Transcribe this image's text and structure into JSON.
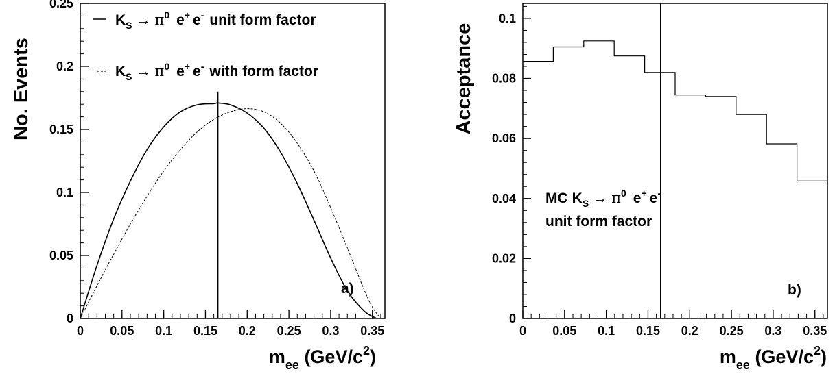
{
  "chart_data": [
    {
      "type": "line",
      "panel_label": "a)",
      "ylabel": "No. Events",
      "xlabel": {
        "main": "m",
        "sub": "ee",
        "unit_pre": " (GeV/c",
        "unit_sup": "2",
        "unit_post": ")"
      },
      "xlim": [
        0,
        0.365
      ],
      "ylim": [
        0,
        0.25
      ],
      "xticks": [
        0,
        0.05,
        0.1,
        0.15,
        0.2,
        0.25,
        0.3,
        0.35
      ],
      "xtick_labels": [
        "0",
        "0.05",
        "0.1",
        "0.15",
        "0.2",
        "0.25",
        "0.3",
        "0.35"
      ],
      "yticks": [
        0,
        0.05,
        0.1,
        0.15,
        0.2,
        0.25
      ],
      "ytick_labels": [
        "0",
        "0.05",
        "0.1",
        "0.15",
        "0.2",
        "0.25"
      ],
      "vline_x": 0.165,
      "vline_top": 0.18,
      "legend": [
        {
          "style": "solid",
          "k": "K",
          "ks": "S",
          "pi": "π",
          "pis": "0",
          "e1": "e",
          "e1s": "+",
          "e2": "e",
          "e2s": "-",
          "text": "unit form factor"
        },
        {
          "style": "dashed",
          "k": "K",
          "ks": "S",
          "pi": "π",
          "pis": "0",
          "e1": "e",
          "e1s": "+",
          "e2": "e",
          "e2s": "-",
          "text": "with form factor"
        }
      ],
      "series": [
        {
          "style": "solid",
          "x": [
            0,
            0.02,
            0.04,
            0.06,
            0.08,
            0.1,
            0.12,
            0.14,
            0.16,
            0.165,
            0.18,
            0.2,
            0.22,
            0.24,
            0.26,
            0.28,
            0.3,
            0.32,
            0.34,
            0.355
          ],
          "y": [
            0,
            0.042,
            0.079,
            0.109,
            0.134,
            0.152,
            0.164,
            0.1695,
            0.1705,
            0.171,
            0.1695,
            0.163,
            0.151,
            0.132,
            0.107,
            0.078,
            0.048,
            0.022,
            0.006,
            0
          ]
        },
        {
          "style": "dashed",
          "x": [
            0,
            0.02,
            0.04,
            0.06,
            0.08,
            0.1,
            0.12,
            0.14,
            0.16,
            0.18,
            0.2,
            0.22,
            0.24,
            0.26,
            0.28,
            0.3,
            0.32,
            0.34,
            0.35,
            0.36
          ],
          "y": [
            0,
            0.026,
            0.051,
            0.075,
            0.097,
            0.117,
            0.134,
            0.148,
            0.158,
            0.164,
            0.1665,
            0.164,
            0.155,
            0.139,
            0.117,
            0.088,
            0.056,
            0.023,
            0.009,
            0
          ]
        }
      ]
    },
    {
      "type": "step",
      "panel_label": "b)",
      "ylabel": "Acceptance",
      "xlabel": {
        "main": "m",
        "sub": "ee",
        "unit_pre": " (GeV/c",
        "unit_sup": "2",
        "unit_post": ")"
      },
      "xlim": [
        0,
        0.365
      ],
      "ylim": [
        0,
        0.105
      ],
      "xticks": [
        0,
        0.05,
        0.1,
        0.15,
        0.2,
        0.25,
        0.3,
        0.35
      ],
      "xtick_labels": [
        "0",
        "0.05",
        "0.1",
        "0.15",
        "0.2",
        "0.25",
        "0.3",
        "0.35"
      ],
      "yticks": [
        0,
        0.02,
        0.04,
        0.06,
        0.08,
        0.1
      ],
      "ytick_labels": [
        "0",
        "0.02",
        "0.04",
        "0.06",
        "0.08",
        "0.1"
      ],
      "vline_x": 0.165,
      "vline_top": 0.105,
      "annotation": {
        "mc": "MC",
        "k": "K",
        "ks": "S",
        "pi": "π",
        "pis": "0",
        "e1": "e",
        "e1s": "+",
        "e2": "e",
        "e2s": "-",
        "line2": "unit form factor"
      },
      "bin_edges": [
        0,
        0.0365,
        0.073,
        0.1095,
        0.146,
        0.1825,
        0.219,
        0.2555,
        0.292,
        0.3285,
        0.365
      ],
      "values": [
        0.0857,
        0.0905,
        0.0925,
        0.0875,
        0.082,
        0.0745,
        0.074,
        0.068,
        0.0582,
        0.0458
      ]
    }
  ]
}
